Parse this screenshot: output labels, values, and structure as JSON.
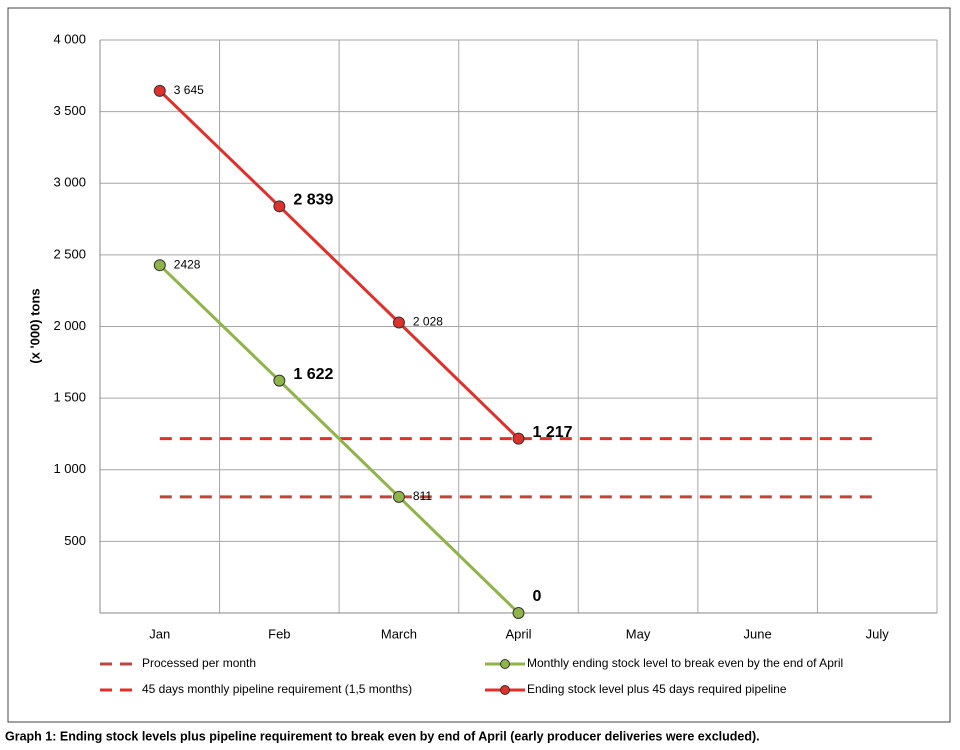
{
  "chart_data": {
    "type": "line",
    "caption": "Graph 1: Ending stock levels plus pipeline requirement to break even by end of April (early producer deliveries were excluded).",
    "ylabel": "(x '000) tons",
    "categories": [
      "Jan",
      "Feb",
      "March",
      "April",
      "May",
      "June",
      "July"
    ],
    "ylim": [
      0,
      4000
    ],
    "yticks": [
      500,
      {
        "value": 1000,
        "label": "1 000"
      },
      {
        "value": 1500,
        "label": "1 500"
      },
      {
        "value": 2000,
        "label": "2 000"
      },
      {
        "value": 2500,
        "label": "2 500"
      },
      {
        "value": 3000,
        "label": "3 000"
      },
      {
        "value": 3500,
        "label": "3 500"
      },
      {
        "value": 4000,
        "label": "4 000"
      }
    ],
    "grid": true,
    "series": [
      {
        "name": "Processed per month",
        "color": "#b8473f",
        "dashed": true,
        "values": [
          811,
          811,
          811,
          811,
          811,
          811,
          811
        ]
      },
      {
        "name": "45 days monthly pipeline requirement (1,5 months)",
        "color": "#e0302b",
        "dashed": true,
        "values": [
          1217,
          1217,
          1217,
          1217,
          1217,
          1217,
          1217
        ]
      },
      {
        "name": "Monthly ending stock level to break even by the end of April",
        "color": "#8fb44a",
        "dashed": false,
        "values": [
          2428,
          1622,
          811,
          0,
          null,
          null,
          null
        ],
        "value_labels": [
          "2428",
          "1 622",
          "811",
          "0",
          null,
          null,
          null
        ]
      },
      {
        "name": "Ending stock level plus 45 days required pipeline",
        "color": "#e0302b",
        "dashed": false,
        "values": [
          3645,
          2839,
          2028,
          1217,
          null,
          null,
          null
        ],
        "value_labels": [
          "3 645",
          "2 839",
          "2 028",
          "1 217",
          null,
          null,
          null
        ]
      }
    ]
  }
}
